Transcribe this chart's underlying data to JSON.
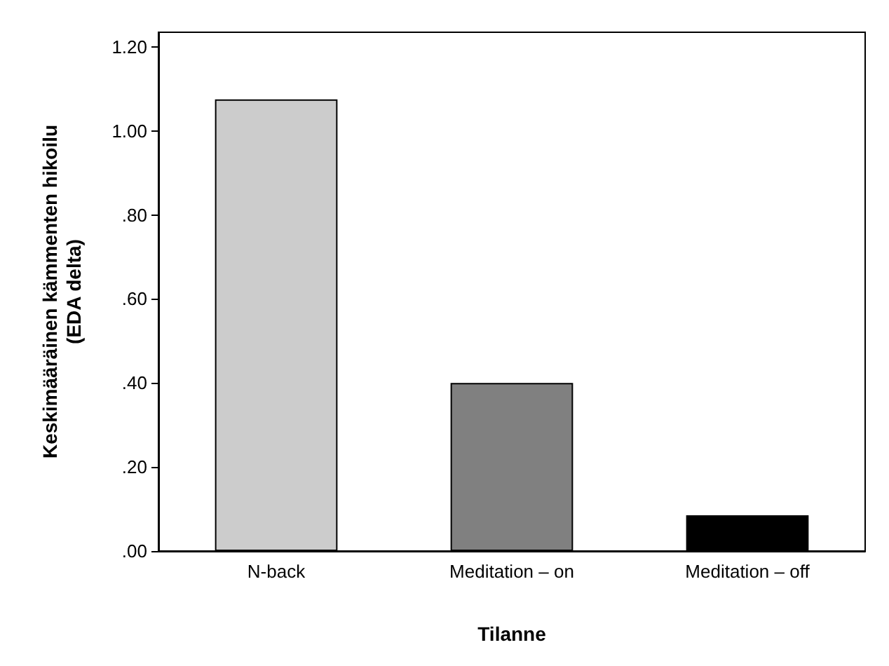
{
  "chart_data": {
    "type": "bar",
    "xlabel": "Tilanne",
    "ylabel": "Keskimääräinen kämmenten hikoilu\n(EDA delta)",
    "categories": [
      "N-back",
      "Meditation – on",
      "Meditation – off"
    ],
    "values": [
      1.075,
      0.4,
      0.085
    ],
    "colors": [
      "#cccccc",
      "#808080",
      "#000000"
    ],
    "ylim": [
      0,
      1.235
    ],
    "yticks": [
      {
        "value": 0,
        "label": ".00"
      },
      {
        "value": 0.2,
        "label": ".20"
      },
      {
        "value": 0.4,
        "label": ".40"
      },
      {
        "value": 0.6,
        "label": ".60"
      },
      {
        "value": 0.8,
        "label": ".80"
      },
      {
        "value": 1.0,
        "label": "1.00"
      },
      {
        "value": 1.2,
        "label": "1.20"
      }
    ],
    "data_labels": false
  }
}
